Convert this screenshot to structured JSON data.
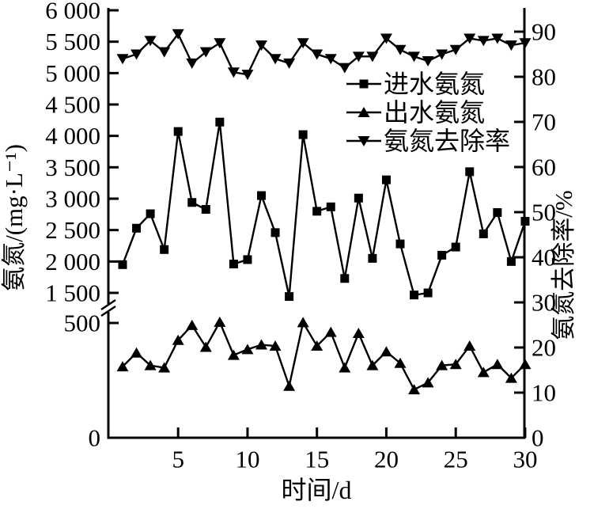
{
  "figure": {
    "background": "#ffffff",
    "ink": "#000000"
  },
  "chart_data": {
    "type": "line",
    "title": "",
    "xlabel": "时间/d",
    "ylabel_left": "氨氮/(mg·L⁻¹)",
    "ylabel_right": "氨氮去除率/%",
    "x": [
      1,
      2,
      3,
      4,
      5,
      6,
      7,
      8,
      9,
      10,
      11,
      12,
      13,
      14,
      15,
      16,
      17,
      18,
      19,
      20,
      21,
      22,
      23,
      24,
      25,
      26,
      27,
      28,
      29,
      30
    ],
    "series": [
      {
        "id": "influent",
        "name": "进水氨氮",
        "axis": "left",
        "marker": "square",
        "values": [
          1950,
          2530,
          2760,
          2190,
          4070,
          2940,
          2830,
          4220,
          1960,
          2030,
          3050,
          2460,
          1380,
          4020,
          2800,
          2870,
          1730,
          3010,
          2050,
          3300,
          2280,
          1430,
          1500,
          2100,
          2230,
          3430,
          2440,
          2780,
          2000,
          2640
        ]
      },
      {
        "id": "effluent",
        "name": "出水氨氮",
        "axis": "left",
        "marker": "triangle-up",
        "values": [
          310,
          370,
          315,
          305,
          425,
          490,
          395,
          530,
          360,
          385,
          405,
          400,
          225,
          515,
          400,
          460,
          305,
          455,
          315,
          375,
          325,
          210,
          240,
          315,
          320,
          400,
          285,
          320,
          260,
          320
        ]
      },
      {
        "id": "removal",
        "name": "氨氮去除率",
        "axis": "right",
        "marker": "triangle-down",
        "values": [
          84,
          85,
          88,
          85.5,
          89.5,
          83,
          85.5,
          87.5,
          81,
          80.5,
          87,
          84,
          83,
          87.5,
          85,
          84,
          82,
          84.5,
          84.5,
          88.5,
          86,
          84.5,
          83.5,
          85,
          86,
          88.5,
          88,
          88.5,
          87,
          87.5
        ]
      }
    ],
    "left_axis": {
      "range_low": [
        0,
        500
      ],
      "range_high": [
        1500,
        6000
      ],
      "break_between": [
        500,
        1500
      ],
      "ticks": [
        {
          "v": 0,
          "label": "0"
        },
        {
          "v": 500,
          "label": "500"
        },
        {
          "v": 1500,
          "label": "1 500"
        },
        {
          "v": 2000,
          "label": "2 000"
        },
        {
          "v": 2500,
          "label": "2 500"
        },
        {
          "v": 3000,
          "label": "3 000"
        },
        {
          "v": 3500,
          "label": "3 500"
        },
        {
          "v": 4000,
          "label": "4 000"
        },
        {
          "v": 4500,
          "label": "4 500"
        },
        {
          "v": 5000,
          "label": "5 000"
        },
        {
          "v": 5500,
          "label": "5 500"
        },
        {
          "v": 6000,
          "label": "6 000"
        }
      ]
    },
    "right_axis": {
      "range": [
        0,
        90
      ],
      "ticks": [
        0,
        10,
        20,
        30,
        40,
        50,
        60,
        70,
        80,
        90
      ]
    },
    "x_axis": {
      "range": [
        1,
        30
      ],
      "ticks": [
        5,
        10,
        15,
        20,
        25,
        30
      ]
    },
    "legend": {
      "position": "upper-right-inside"
    },
    "grid": false
  }
}
